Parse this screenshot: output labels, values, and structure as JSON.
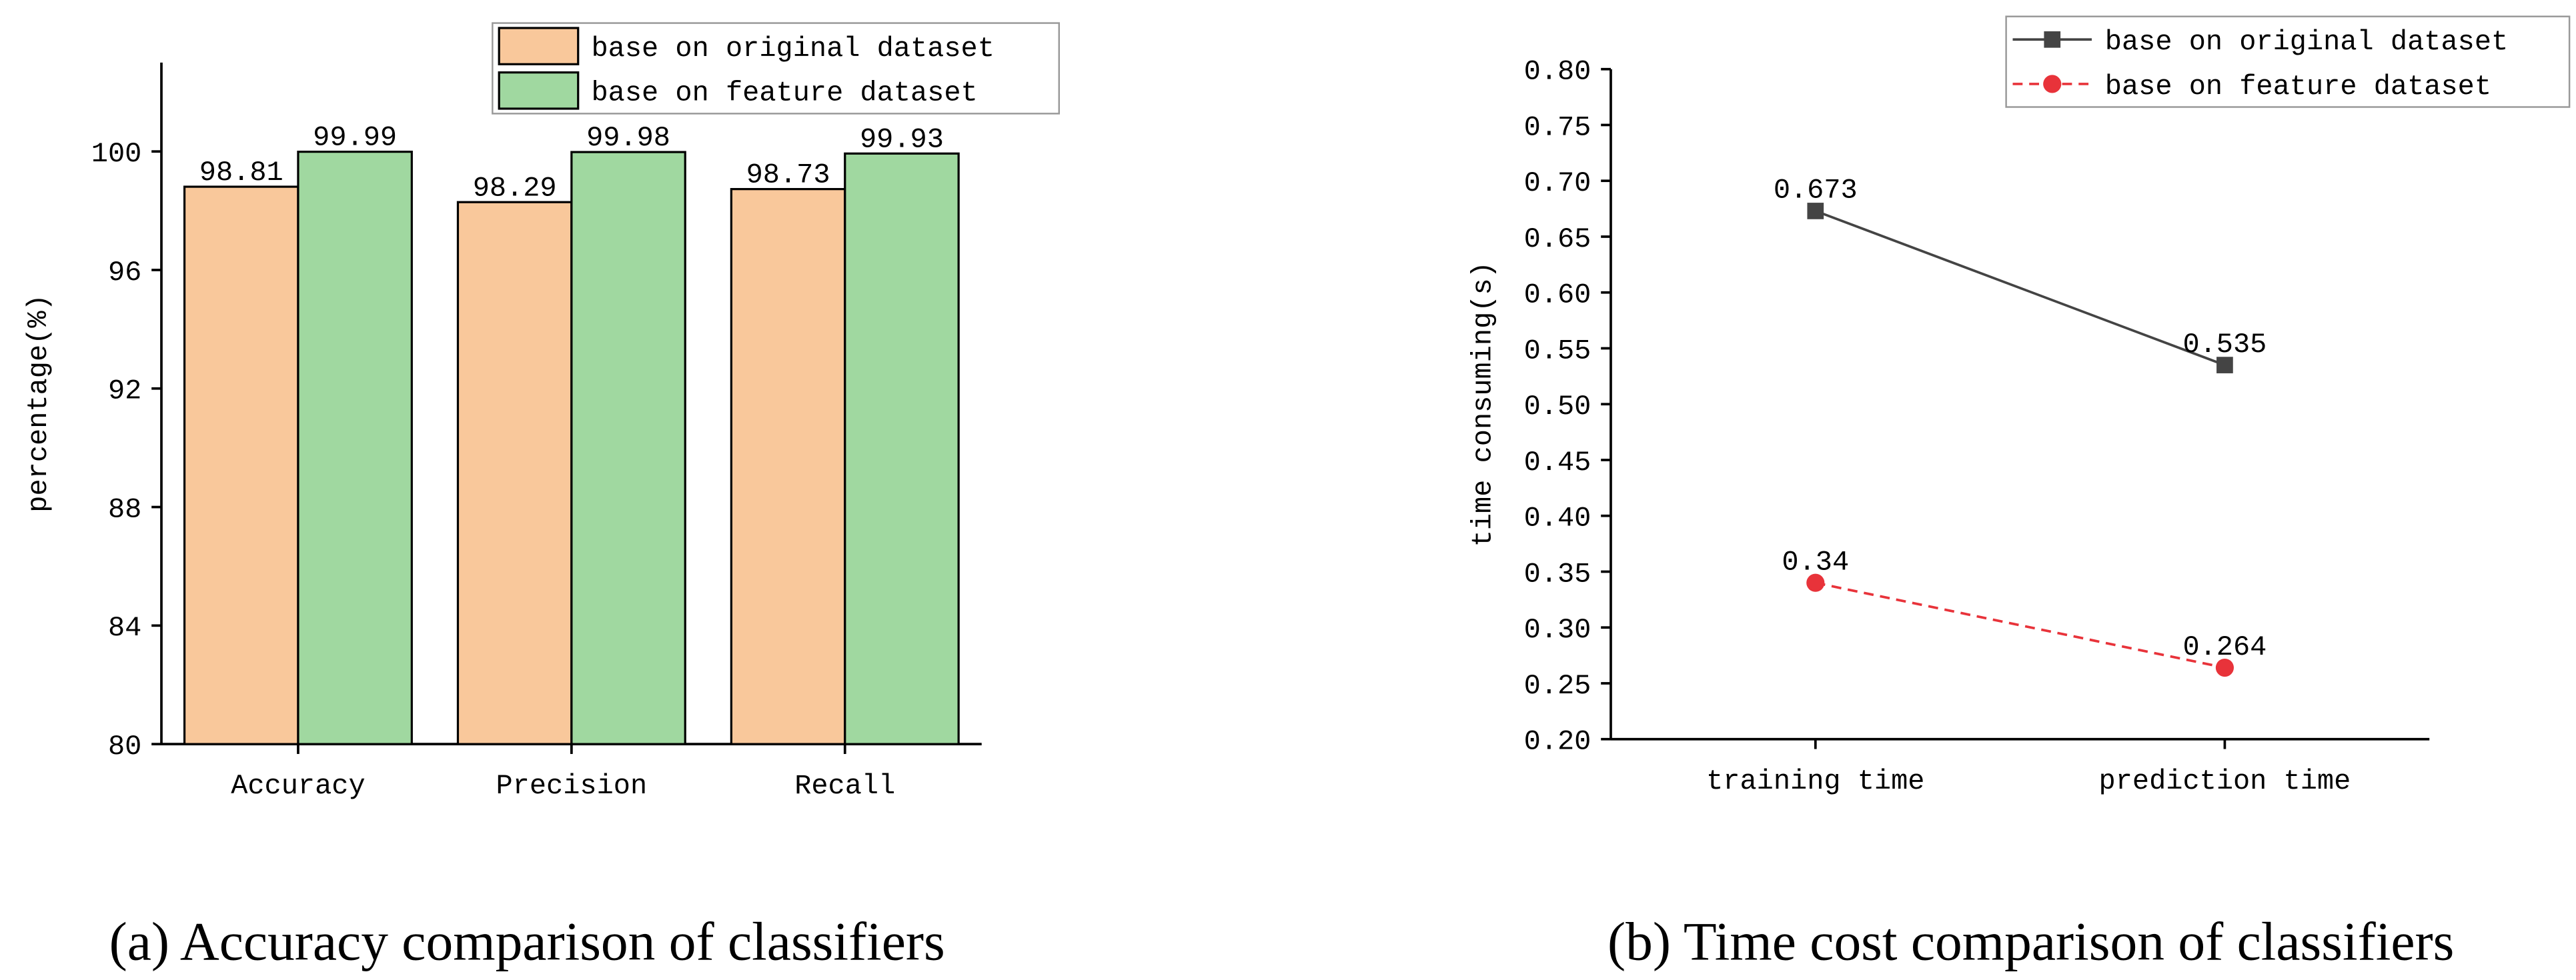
{
  "chart_data": [
    {
      "type": "bar",
      "caption": "(a) Accuracy comparison of classifiers",
      "ylabel": "percentage(%)",
      "categories": [
        "Accuracy",
        "Precision",
        "Recall"
      ],
      "series": [
        {
          "name": "base on original dataset",
          "color": "#f9c89b",
          "values": [
            98.81,
            98.29,
            98.73
          ]
        },
        {
          "name": "base on feature dataset",
          "color": "#a0d8a0",
          "values": [
            99.99,
            99.98,
            99.93
          ]
        }
      ],
      "ylim": [
        80,
        103
      ],
      "yticks": [
        80,
        84,
        88,
        92,
        96,
        100
      ]
    },
    {
      "type": "line",
      "caption": "(b) Time cost comparison of classifiers",
      "ylabel": "time consuming(s)",
      "categories": [
        "training time",
        "prediction time"
      ],
      "series": [
        {
          "name": "base on original dataset",
          "color": "#444444",
          "marker": "square",
          "dashed": false,
          "values": [
            0.673,
            0.535
          ]
        },
        {
          "name": "base on feature dataset",
          "color": "#e8333a",
          "marker": "circle",
          "dashed": true,
          "values": [
            0.34,
            0.264
          ]
        }
      ],
      "ylim": [
        0.2,
        0.8
      ],
      "yticks": [
        {
          "value": 0.2,
          "label": "0.20"
        },
        0.25,
        {
          "value": 0.3,
          "label": "0.30"
        },
        0.35,
        {
          "value": 0.4,
          "label": "0.40"
        },
        0.45,
        {
          "value": 0.5,
          "label": "0.50"
        },
        0.55,
        {
          "value": 0.6,
          "label": "0.60"
        },
        0.65,
        {
          "value": 0.7,
          "label": "0.70"
        },
        0.75,
        {
          "value": 0.8,
          "label": "0.80"
        }
      ]
    }
  ]
}
